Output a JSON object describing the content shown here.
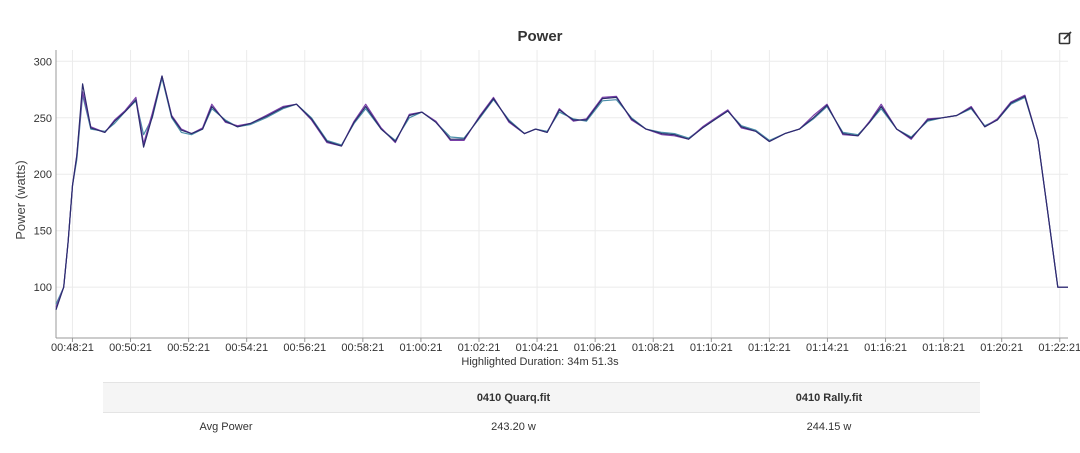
{
  "chart": {
    "title": "Power",
    "ylabel": "Power (watts)",
    "edit_icon": "edit-icon",
    "highlighted_duration": "Highlighted Duration: 34m 51.3s"
  },
  "colors": {
    "series_a": "#4a8fa8",
    "series_b": "#7a3fa8",
    "series_c": "#2c2c6e",
    "grid": "#ebebeb",
    "axis": "#999999"
  },
  "table": {
    "headers": [
      "",
      "0410 Quarq.fit",
      "0410 Rally.fit"
    ],
    "rows": [
      {
        "label": "Avg Power",
        "a": "243.20 w",
        "b": "244.15 w"
      }
    ]
  },
  "chart_data": {
    "type": "line",
    "title": "Power",
    "xlabel": "",
    "ylabel": "Power (watts)",
    "x_unit": "time (mm:ss elapsed from 00:47:47)",
    "xlim": [
      "00:47:47",
      "01:22:38"
    ],
    "ylim": [
      55,
      310
    ],
    "y_ticks": [
      100,
      150,
      200,
      250,
      300
    ],
    "x_tick_labels": [
      "00:48:21",
      "00:50:21",
      "00:52:21",
      "00:54:21",
      "00:56:21",
      "00:58:21",
      "01:00:21",
      "01:02:21",
      "01:04:21",
      "01:06:21",
      "01:08:21",
      "01:10:21",
      "01:12:21",
      "01:14:21",
      "01:16:21",
      "01:18:21",
      "01:20:21",
      "01:22:21"
    ],
    "grid": true,
    "legend": "none",
    "x": [
      "00:47:47",
      "00:48:03",
      "00:48:12",
      "00:48:21",
      "00:48:30",
      "00:48:42",
      "00:48:59",
      "00:49:28",
      "00:49:48",
      "00:50:09",
      "00:50:32",
      "00:50:48",
      "00:51:06",
      "00:51:26",
      "00:51:46",
      "00:52:06",
      "00:52:27",
      "00:52:50",
      "00:53:09",
      "00:53:37",
      "00:54:02",
      "00:54:29",
      "00:55:01",
      "00:55:36",
      "00:56:04",
      "00:56:35",
      "00:57:07",
      "00:57:37",
      "00:58:03",
      "00:58:27",
      "00:58:59",
      "00:59:28",
      "00:59:57",
      "01:00:23",
      "01:00:52",
      "01:01:22",
      "01:01:50",
      "01:02:23",
      "01:02:51",
      "01:03:23",
      "01:03:55",
      "01:04:18",
      "01:04:42",
      "01:05:07",
      "01:05:36",
      "01:06:03",
      "01:06:36",
      "01:07:05",
      "01:07:36",
      "01:08:06",
      "01:08:39",
      "01:09:05",
      "01:09:34",
      "01:10:03",
      "01:10:27",
      "01:10:55",
      "01:11:23",
      "01:11:53",
      "01:12:21",
      "01:12:53",
      "01:13:23",
      "01:13:52",
      "01:14:20",
      "01:14:53",
      "01:15:24",
      "01:15:48",
      "01:16:12",
      "01:16:44",
      "01:17:14",
      "01:17:48",
      "01:18:18",
      "01:18:48",
      "01:19:18",
      "01:19:46",
      "01:20:12",
      "01:20:40",
      "01:21:09",
      "01:21:36",
      "01:21:55",
      "01:22:17",
      "01:22:38"
    ],
    "series": [
      {
        "values": [
          85,
          100,
          140,
          190,
          213,
          270,
          240,
          238,
          245,
          255,
          265,
          235,
          250,
          285,
          250,
          237,
          235,
          240,
          258,
          248,
          242,
          244,
          250,
          258,
          262,
          250,
          230,
          226,
          245,
          258,
          240,
          230,
          250,
          255,
          246,
          233,
          232,
          250,
          266,
          248,
          236,
          240,
          238,
          255,
          249,
          247,
          265,
          266,
          250,
          240,
          237,
          236,
          232,
          241,
          248,
          256,
          243,
          239,
          230,
          236,
          240,
          249,
          260,
          237,
          235,
          246,
          258,
          240,
          233,
          247,
          250,
          252,
          258,
          243,
          248,
          262,
          268,
          230,
          170,
          100,
          100
        ]
      },
      {
        "values": [
          82,
          100,
          140,
          190,
          217,
          273,
          242,
          237,
          248,
          256,
          268,
          227,
          254,
          287,
          252,
          240,
          236,
          241,
          262,
          246,
          243,
          245,
          252,
          260,
          262,
          248,
          228,
          225,
          247,
          262,
          241,
          228,
          253,
          255,
          247,
          230,
          230,
          252,
          268,
          246,
          236,
          240,
          237,
          258,
          247,
          249,
          268,
          269,
          248,
          240,
          235,
          234,
          231,
          242,
          249,
          257,
          241,
          238,
          229,
          236,
          240,
          252,
          262,
          235,
          234,
          247,
          262,
          240,
          231,
          249,
          250,
          252,
          260,
          242,
          249,
          264,
          270,
          230,
          170,
          100,
          100
        ]
      },
      {
        "values": [
          80,
          100,
          140,
          190,
          216,
          280,
          241,
          237,
          247,
          255,
          266,
          224,
          251,
          287,
          251,
          239,
          236,
          240,
          260,
          247,
          242,
          245,
          251,
          259,
          262,
          249,
          229,
          225,
          246,
          260,
          240,
          229,
          252,
          255,
          246,
          231,
          231,
          251,
          267,
          247,
          236,
          240,
          237,
          257,
          248,
          248,
          267,
          268,
          249,
          240,
          236,
          235,
          231,
          241,
          248,
          256,
          242,
          238,
          229,
          236,
          240,
          250,
          261,
          236,
          234,
          246,
          260,
          240,
          232,
          248,
          250,
          252,
          259,
          242,
          248,
          263,
          269,
          230,
          170,
          100,
          100
        ]
      }
    ]
  }
}
